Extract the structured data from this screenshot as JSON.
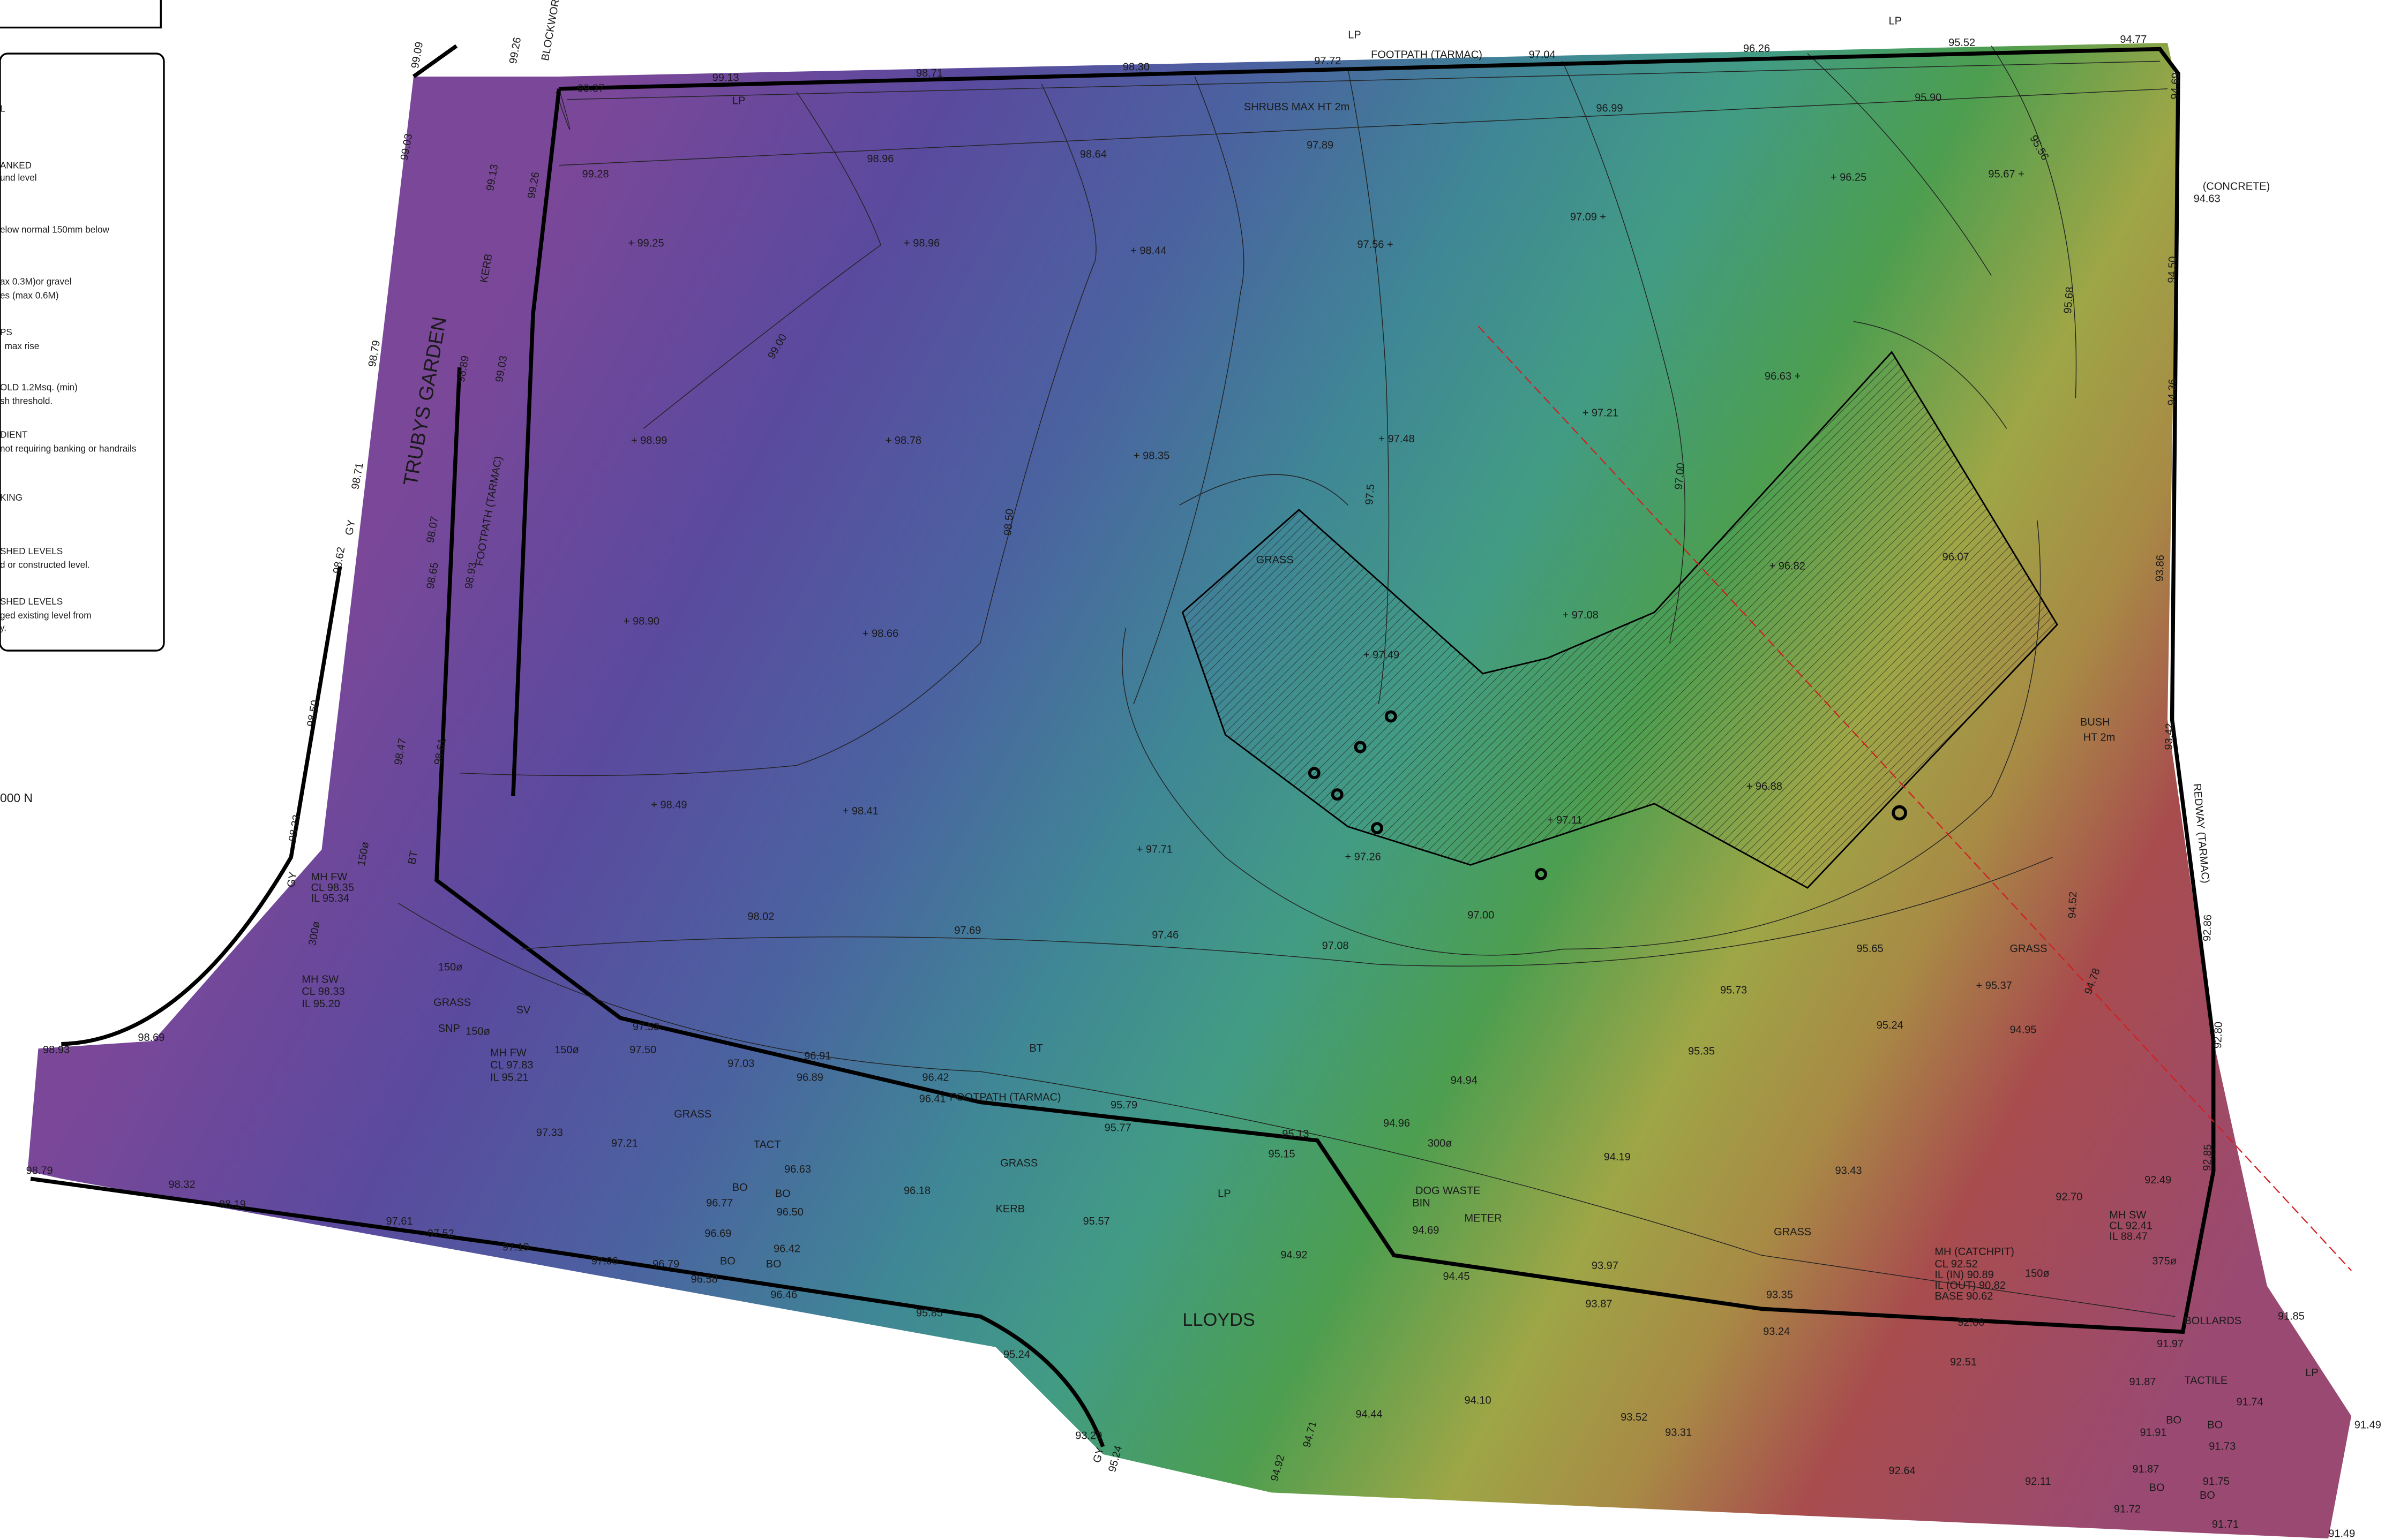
{
  "legend": [
    "L",
    "ANKED",
    "und level",
    "elow normal 150mm below",
    "ax 0.3M)or gravel",
    "es (max 0.6M)",
    "PS",
    "max rise",
    "OLD 1.2Msq. (min)",
    "sh threshold.",
    "DIENT",
    "not requiring banking or handrails",
    "KING",
    "SHED LEVELS",
    "d or constructed level.",
    "SHED LEVELS",
    "ged existing level from",
    "y."
  ],
  "spot_levels": [
    "99.37",
    "99.13",
    "98.71",
    "98.30",
    "97.72",
    "97.04",
    "96.26",
    "95.52",
    "94.77",
    "99.28",
    "98.96",
    "98.64",
    "97.89",
    "96.99",
    "95.90",
    "+ 99.25",
    "+ 98.96",
    "+ 98.44",
    "97.56 +",
    "97.09 +",
    "+ 96.25",
    "95.67 +",
    "+ 98.99",
    "+ 98.78",
    "+ 98.35",
    "+ 97.48",
    "+ 97.21",
    "96.63 +",
    "+ 98.90",
    "+ 98.66",
    "+ 97.49",
    "+ 97.08",
    "+ 96.82",
    "96.07",
    "+ 98.49",
    "+ 98.41",
    "+ 97.71",
    "+ 97.26",
    "+ 97.11",
    "+ 96.88",
    "98.02",
    "97.69",
    "97.46",
    "97.08",
    "97.00",
    "95.73",
    "95.65",
    "+ 95.37",
    "95.24",
    "94.95",
    "95.35",
    "94.94",
    "94.96",
    "94.19",
    "93.43",
    "92.70",
    "92.49",
    "97.53",
    "97.50",
    "97.03",
    "96.91",
    "96.89",
    "96.42",
    "96.41",
    "95.79",
    "95.77",
    "95.13",
    "95.15",
    "96.63",
    "96.77",
    "96.50",
    "96.18",
    "95.57",
    "94.92",
    "94.69",
    "94.45",
    "93.97",
    "93.87",
    "93.35",
    "93.24",
    "92.66",
    "92.51",
    "91.97",
    "91.87",
    "91.74",
    "91.91",
    "91.73",
    "91.87",
    "91.75",
    "91.71",
    "91.72",
    "91.49",
    "91.49",
    "91.85",
    "92.11",
    "92.64",
    "93.52",
    "93.31",
    "94.10",
    "94.44",
    "93.20",
    "95.24",
    "95.85",
    "96.46",
    "96.58",
    "96.79",
    "96.69",
    "96.42",
    "97.06",
    "97.19",
    "97.52",
    "97.61",
    "98.19",
    "98.32",
    "98.79",
    "98.93",
    "98.69",
    "97.33",
    "97.21"
  ],
  "rotated_levels": [
    "99.09",
    "99.26",
    "99.03",
    "98.79",
    "98.71",
    "98.62",
    "98.50",
    "98.33",
    "98.89",
    "99.13",
    "99.26",
    "99.03",
    "98.07",
    "98.65",
    "98.93",
    "98.61",
    "98.47",
    "97.00",
    "97.5",
    "98.50",
    "99.00",
    "95.68",
    "95.56",
    "94.69",
    "94.50",
    "94.36",
    "93.86",
    "93.42",
    "92.86",
    "92.80",
    "92.85",
    "94.52",
    "94.78",
    "94.71",
    "94.92",
    "95.24"
  ],
  "notes": [
    "FOOTPATH (TARMAC)",
    "SHRUBS MAX HT 2m",
    "LP",
    "LP",
    "LP",
    "BLOCKWORK",
    "KERB",
    "TRUBYS GARDEN",
    "FOOTPATH (TARMAC)",
    "(CONCRETE)",
    "94.63",
    "GRASS",
    "BUSH",
    "HT 2m",
    "REDWAY (TARMAC)",
    "GRASS",
    "GRASS",
    "GRASS",
    "GRASS",
    "GRASS",
    "FOOTPATH (TARMAC)",
    "KERB",
    "LP",
    "LLOYDS",
    "DOG WASTE",
    "BIN",
    "METER",
    "BT",
    "TACT",
    "BO",
    "BO",
    "BO",
    "BO",
    "BO",
    "BO",
    "BO",
    "BO",
    "MH FW",
    "CL 98.35",
    "IL 95.34",
    "MH SW",
    "CL 98.33",
    "IL 95.20",
    "MH FW",
    "CL 97.83",
    "IL 95.21",
    "MH SW",
    "CL 92.41",
    "IL 88.47",
    "MH (CATCHPIT)",
    "CL 92.52",
    "IL (IN) 90.89",
    "IL (OUT) 90.82",
    "BASE 90.62",
    "BOLLARDS",
    "TACTILE",
    "LP",
    "SV",
    "SNP",
    "150ø",
    "300ø",
    "150ø",
    "150ø",
    "150ø",
    "300ø",
    "150ø",
    "375ø",
    "000 N",
    "BT",
    "GY",
    "GY",
    "GY"
  ]
}
